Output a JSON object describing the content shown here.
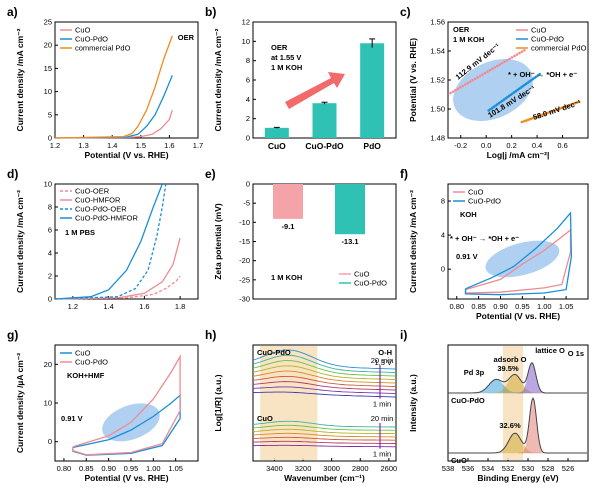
{
  "figure": {
    "panel_labels": [
      "a)",
      "b)",
      "c)",
      "d)",
      "e)",
      "f)",
      "g)",
      "h)",
      "i)"
    ]
  },
  "chart_data": [
    {
      "panel": "a)",
      "type": "line",
      "xlabel": "Potential (V vs. RHE)",
      "ylabel": "Current density /mA cm⁻²",
      "xlim": [
        1.2,
        1.7
      ],
      "ylim": [
        0,
        25
      ],
      "xticks": [
        "1.2",
        "1.3",
        "1.4",
        "1.5",
        "1.6",
        "1.7"
      ],
      "yticks": [
        "0",
        "5",
        "10",
        "15",
        "20",
        "25"
      ],
      "annotation": "OER",
      "series": [
        {
          "name": "CuO",
          "color": "#f08a94",
          "dash": "",
          "points": [
            [
              1.2,
              0
            ],
            [
              1.45,
              0.1
            ],
            [
              1.5,
              0.3
            ],
            [
              1.54,
              0.8
            ],
            [
              1.57,
              2
            ],
            [
              1.6,
              4
            ],
            [
              1.61,
              6
            ]
          ]
        },
        {
          "name": "CuO-PdO",
          "color": "#1a8fd6",
          "dash": "",
          "points": [
            [
              1.2,
              0
            ],
            [
              1.45,
              0.2
            ],
            [
              1.49,
              0.8
            ],
            [
              1.52,
              2.5
            ],
            [
              1.55,
              5
            ],
            [
              1.58,
              9
            ],
            [
              1.61,
              13.5
            ]
          ]
        },
        {
          "name": "commercial PdO",
          "color": "#f08c1e",
          "dash": "",
          "points": [
            [
              1.2,
              0
            ],
            [
              1.44,
              0.3
            ],
            [
              1.47,
              1
            ],
            [
              1.49,
              2.5
            ],
            [
              1.52,
              6
            ],
            [
              1.55,
              11
            ],
            [
              1.58,
              17
            ],
            [
              1.61,
              22
            ]
          ]
        }
      ]
    },
    {
      "panel": "b)",
      "type": "bar",
      "ylabel": "Current density /mA cm⁻²",
      "categories": [
        "CuO",
        "CuO-PdO",
        "PdO"
      ],
      "values": [
        1.05,
        3.6,
        9.8
      ],
      "errors": [
        0.05,
        0.1,
        0.45
      ],
      "ylim": [
        0,
        12
      ],
      "yticks": [
        "0",
        "2",
        "4",
        "6",
        "8",
        "10",
        "12"
      ],
      "annotation": [
        "OER",
        "at 1.55 V",
        "1 M KOH"
      ],
      "bar_color": "#2fc2b4"
    },
    {
      "panel": "c)",
      "type": "scatter",
      "xlabel": "Log|j /mA cm⁻²|",
      "ylabel": "Potential (V vs. RHE)",
      "xlim": [
        -0.3,
        0.8
      ],
      "ylim": [
        1.48,
        1.56
      ],
      "xticks": [
        "-0.2",
        "0.0",
        "0.2",
        "0.4",
        "0.6"
      ],
      "yticks": [
        "1.48",
        "1.50",
        "1.52",
        "1.54",
        "1.56"
      ],
      "annotation": [
        "OER",
        "1 M KOH"
      ],
      "reaction": "* + OH⁻ → *OH + e⁻",
      "series": [
        {
          "name": "CuO",
          "color": "#f08a94",
          "start": [
            -0.28,
            1.511
          ],
          "end": [
            0.3,
            1.5405
          ],
          "slope_label": "112.9 mV dec⁻¹"
        },
        {
          "name": "CuO-PdO",
          "color": "#1a8fd6",
          "start": [
            0.02,
            1.499
          ],
          "end": [
            0.42,
            1.524
          ],
          "slope_label": "101.8 mV dec⁻¹"
        },
        {
          "name": "commercial PdO",
          "color": "#f08c1e",
          "start": [
            0.28,
            1.491
          ],
          "end": [
            0.73,
            1.505
          ],
          "slope_label": "58.0 mV dec⁻¹"
        }
      ]
    },
    {
      "panel": "d)",
      "type": "line",
      "xlabel": "",
      "ylabel": "Current density /mA cm⁻²",
      "xlim": [
        1.1,
        1.9
      ],
      "ylim": [
        0,
        10
      ],
      "xticks": [
        "1.2",
        "1.4",
        "1.6",
        "1.8"
      ],
      "yticks": [
        "0",
        "2",
        "4",
        "6",
        "8",
        "10"
      ],
      "annotation": "1 M PBS",
      "series": [
        {
          "name": "CuO-OER",
          "color": "#f08a94",
          "dash": "3,2",
          "points": [
            [
              1.1,
              0
            ],
            [
              1.5,
              0.1
            ],
            [
              1.65,
              0.4
            ],
            [
              1.72,
              0.9
            ],
            [
              1.78,
              1.6
            ],
            [
              1.8,
              2
            ]
          ]
        },
        {
          "name": "CuO-HMFOR",
          "color": "#f08a94",
          "dash": "",
          "points": [
            [
              1.1,
              0
            ],
            [
              1.45,
              0.1
            ],
            [
              1.6,
              0.5
            ],
            [
              1.7,
              1.5
            ],
            [
              1.76,
              3
            ],
            [
              1.8,
              5.3
            ]
          ]
        },
        {
          "name": "CuO-PdO-OER",
          "color": "#1a8fd6",
          "dash": "3,2",
          "points": [
            [
              1.1,
              0
            ],
            [
              1.45,
              0.2
            ],
            [
              1.55,
              0.9
            ],
            [
              1.62,
              2.5
            ],
            [
              1.67,
              5.5
            ],
            [
              1.7,
              8
            ],
            [
              1.72,
              10
            ]
          ]
        },
        {
          "name": "CuO-PdO-HMFOR",
          "color": "#1a8fd6",
          "dash": "",
          "points": [
            [
              1.1,
              0
            ],
            [
              1.3,
              0.2
            ],
            [
              1.4,
              0.8
            ],
            [
              1.5,
              2.5
            ],
            [
              1.58,
              5
            ],
            [
              1.65,
              8
            ],
            [
              1.7,
              10
            ]
          ]
        }
      ]
    },
    {
      "panel": "e)",
      "type": "bar",
      "ylabel": "Zeta potential (mV)",
      "categories": [
        "CuO",
        "CuO-PdO"
      ],
      "values": [
        -9.1,
        -13.1
      ],
      "value_labels": [
        "-9.1",
        "-13.1"
      ],
      "colors": [
        "#f4a3a8",
        "#2fc2b4"
      ],
      "ylim": [
        -30,
        0
      ],
      "yticks": [
        "0",
        "-5",
        "-10",
        "-15",
        "-20",
        "-25",
        "-30"
      ],
      "annotation": "1 M KOH"
    },
    {
      "panel": "f)",
      "type": "line",
      "xlabel": "Potential (V vs. RHE)",
      "ylabel": "Current density /mA cm⁻²",
      "xlim": [
        0.78,
        1.1
      ],
      "ylim": [
        -3.5,
        10
      ],
      "xticks": [
        "0.80",
        "0.85",
        "0.90",
        "0.95",
        "1.00",
        "1.05"
      ],
      "yticks": [
        "0",
        "4",
        "8"
      ],
      "annotation": "KOH",
      "reaction": "* + OH⁻ → *OH + e⁻",
      "marker_label": "0.91 V",
      "series": [
        {
          "name": "CuO",
          "color": "#f08a94",
          "points": [
            [
              0.82,
              -2.4
            ],
            [
              0.9,
              -1.2
            ],
            [
              0.95,
              0.6
            ],
            [
              1.0,
              2.2
            ],
            [
              1.04,
              3.8
            ],
            [
              1.06,
              4.6
            ],
            [
              1.06,
              2.0
            ],
            [
              1.04,
              -1.8
            ],
            [
              1.0,
              -2.2
            ],
            [
              0.9,
              -2.7
            ],
            [
              0.82,
              -2.8
            ]
          ]
        },
        {
          "name": "CuO-PdO",
          "color": "#1a8fd6",
          "points": [
            [
              0.82,
              -2.3
            ],
            [
              0.88,
              -1.0
            ],
            [
              0.93,
              0.3
            ],
            [
              0.98,
              2.4
            ],
            [
              1.03,
              4.8
            ],
            [
              1.06,
              6.6
            ],
            [
              1.062,
              1.5
            ],
            [
              1.05,
              -2.4
            ],
            [
              1.0,
              -2.8
            ],
            [
              0.9,
              -3.0
            ],
            [
              0.82,
              -2.9
            ]
          ]
        }
      ]
    },
    {
      "panel": "g)",
      "type": "line",
      "xlabel": "Potential (V vs. RHE)",
      "ylabel": "Current density /µA cm⁻²",
      "xlim": [
        0.78,
        1.1
      ],
      "ylim": [
        -5,
        25
      ],
      "xticks": [
        "0.80",
        "0.85",
        "0.90",
        "0.95",
        "1.00",
        "1.05"
      ],
      "yticks": [
        "0",
        "10",
        "20"
      ],
      "annotation": "KOH+HMF",
      "marker_label": "0.91 V",
      "series": [
        {
          "name": "CuO",
          "color": "#1a8fd6",
          "points": [
            [
              0.82,
              -1.5
            ],
            [
              0.9,
              0.5
            ],
            [
              0.95,
              3
            ],
            [
              1.0,
              6.5
            ],
            [
              1.04,
              10
            ],
            [
              1.06,
              12
            ],
            [
              1.06,
              6
            ],
            [
              1.02,
              -1
            ],
            [
              0.95,
              -3
            ],
            [
              0.85,
              -3.5
            ],
            [
              0.82,
              -2.5
            ]
          ]
        },
        {
          "name": "CuO-PdO",
          "color": "#f08a94",
          "points": [
            [
              0.82,
              -1.3
            ],
            [
              0.9,
              1.5
            ],
            [
              0.95,
              5
            ],
            [
              1.0,
              11
            ],
            [
              1.04,
              18
            ],
            [
              1.06,
              22
            ],
            [
              1.06,
              8
            ],
            [
              1.02,
              -0.5
            ],
            [
              0.95,
              -2.8
            ],
            [
              0.85,
              -3.4
            ],
            [
              0.82,
              -2.3
            ]
          ]
        }
      ]
    },
    {
      "panel": "h)",
      "type": "line",
      "xlabel": "Wavenumber (cm⁻¹)",
      "ylabel": "Log[1/R] (a.u.)",
      "xlim": [
        3550,
        2550
      ],
      "xticks": [
        "3400",
        "3200",
        "3000",
        "2800",
        "2600"
      ],
      "highlight_band": [
        3500,
        3100
      ],
      "annotation": [
        "O-H",
        "1.3 V"
      ],
      "groups": [
        {
          "name": "CuO-PdO",
          "time_top": "20 min",
          "time_bottom": "1 min",
          "colors": [
            "#2f8fd6",
            "#3fb3a0",
            "#6fbf40",
            "#b6b32a",
            "#d9892a",
            "#d05a3a",
            "#b03a6a",
            "#7a3ab0",
            "#3a3ab0"
          ]
        },
        {
          "name": "CuO",
          "time_top": "20 min",
          "time_bottom": "1 min",
          "colors": [
            "#3fb3a0",
            "#6fbf40",
            "#b6b32a",
            "#d9892a",
            "#d05a3a",
            "#b03a6a",
            "#8a2aa0"
          ]
        }
      ]
    },
    {
      "panel": "i)",
      "type": "line",
      "xlabel": "Binding Energy (eV)",
      "ylabel": "Intensity (a.u.)",
      "xlim": [
        538,
        524
      ],
      "xticks": [
        "538",
        "536",
        "534",
        "532",
        "530",
        "528",
        "526"
      ],
      "highlight_band": [
        532.5,
        530.5
      ],
      "title": "O 1s",
      "labels": {
        "pd3p": "Pd 3p",
        "adsorb": "adsorb O",
        "lattice": "lattice O",
        "pct_top": "39.5%",
        "pct_bottom": "32.6%"
      },
      "groups": [
        {
          "name": "CuO-PdO",
          "peaks": [
            {
              "c": 533.2,
              "h": 0.28,
              "w": 1.0,
              "col": "#1a8fd6"
            },
            {
              "c": 531.3,
              "h": 0.38,
              "w": 0.9,
              "col": "#c8a020"
            },
            {
              "c": 529.6,
              "h": 0.62,
              "w": 0.55,
              "col": "#6a40c0"
            }
          ]
        },
        {
          "name": "CuO",
          "peaks": [
            {
              "c": 531.3,
              "h": 0.32,
              "w": 0.9,
              "col": "#c8a020"
            },
            {
              "c": 529.5,
              "h": 0.88,
              "w": 0.5,
              "col": "#e0685a"
            }
          ]
        }
      ]
    }
  ]
}
